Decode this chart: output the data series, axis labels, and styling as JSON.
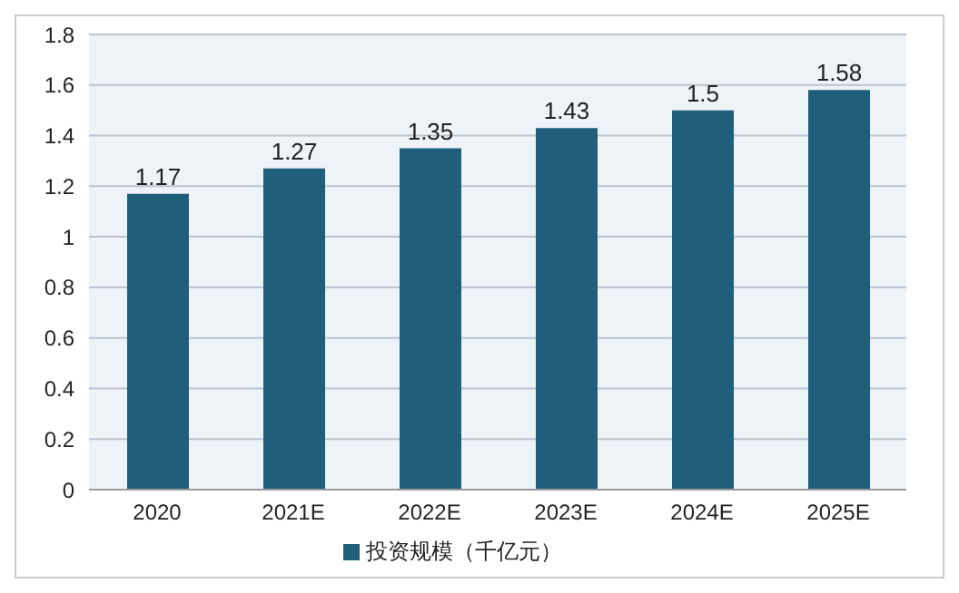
{
  "chart_data": {
    "type": "bar",
    "categories": [
      "2020",
      "2021E",
      "2022E",
      "2023E",
      "2024E",
      "2025E"
    ],
    "series": [
      {
        "name": "投资规模（千亿元）",
        "color": "#1f5f7a",
        "values": [
          1.17,
          1.27,
          1.35,
          1.43,
          1.5,
          1.58
        ]
      }
    ],
    "ylim": [
      0,
      1.8
    ],
    "yticks": [
      0,
      0.2,
      0.4,
      0.6,
      0.8,
      1,
      1.2,
      1.4,
      1.6,
      1.8
    ],
    "grid": "y",
    "legend": "bottom",
    "data_labels": true
  }
}
